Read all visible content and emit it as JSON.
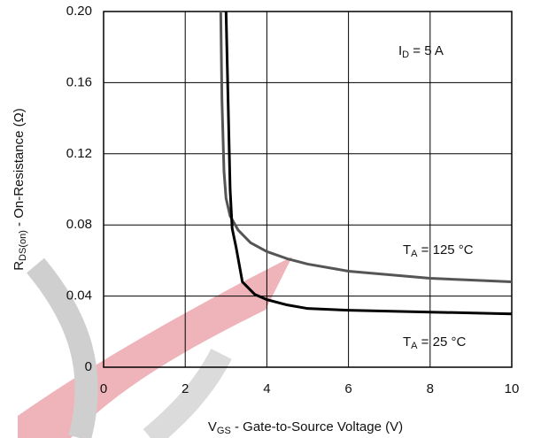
{
  "chart_data": {
    "type": "line",
    "x_label": [
      "V",
      "GS",
      " - Gate-to-Source Voltage (V)"
    ],
    "y_label": [
      "R",
      "DS(on)",
      " - On-Resistance (Ω)"
    ],
    "annotations": [
      {
        "text": [
          "I",
          "D",
          " = 5 A"
        ]
      },
      {
        "text": [
          "T",
          "A",
          " = 125 °C"
        ]
      },
      {
        "text": [
          "T",
          "A",
          " = 25 °C"
        ]
      }
    ],
    "series": [
      {
        "color": "#555555",
        "x": [
          2.87,
          2.9,
          2.95,
          3.0,
          3.1,
          3.3,
          3.6,
          4,
          4.5,
          5,
          6,
          7,
          8,
          9,
          10
        ],
        "values": [
          0.2,
          0.15,
          0.11,
          0.095,
          0.085,
          0.077,
          0.07,
          0.065,
          0.061,
          0.058,
          0.054,
          0.052,
          0.05,
          0.049,
          0.048
        ]
      },
      {
        "color": "#000000",
        "x": [
          3.0,
          3.05,
          3.1,
          3.15,
          3.25,
          3.4,
          3.7,
          4,
          4.5,
          5,
          6,
          8,
          10
        ],
        "values": [
          0.2,
          0.15,
          0.1,
          0.078,
          0.067,
          0.048,
          0.041,
          0.038,
          0.035,
          0.033,
          0.032,
          0.031,
          0.03
        ]
      }
    ],
    "xlim": [
      0,
      10
    ],
    "xticks": [
      0,
      2,
      4,
      6,
      8,
      10
    ],
    "ylim": [
      0,
      0.2
    ],
    "yticks": [
      0,
      0.04,
      0.08,
      0.12,
      0.16,
      {
        "value": 0.2,
        "label": "0.20"
      }
    ],
    "grid": true
  }
}
